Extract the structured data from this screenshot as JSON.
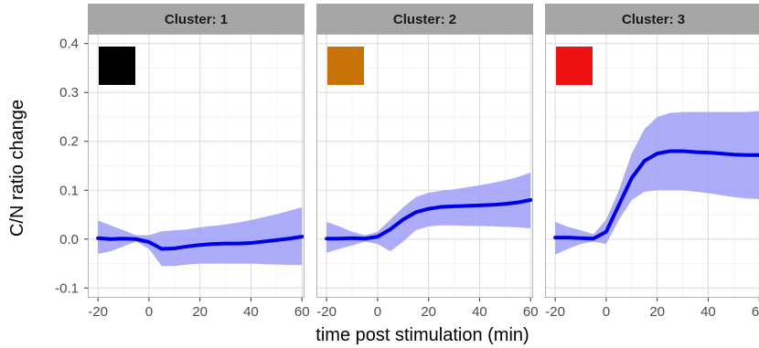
{
  "chart_data": {
    "type": "line",
    "xlabel": "time post stimulation (min)",
    "ylabel": "C/N ratio change",
    "xlim": [
      -24,
      61
    ],
    "ylim": [
      -0.12,
      0.42
    ],
    "x_ticks": [
      -20,
      0,
      20,
      40,
      60
    ],
    "x_tick_labels": [
      "-20",
      "0",
      "20",
      "40",
      "60"
    ],
    "y_ticks": [
      -0.1,
      0.0,
      0.1,
      0.2,
      0.3,
      0.4
    ],
    "y_tick_labels": [
      "-0.1",
      "0.0",
      "0.1",
      "0.2",
      "0.3",
      "0.4"
    ],
    "grid": true,
    "line_color": "#0000e6",
    "ribbon_color": "#9e9ef8",
    "panel_border_color": "#b3b3b3",
    "strip_fill": "#a6a6a6",
    "panels": [
      {
        "strip_label": "Cluster: 1",
        "swatch_color": "#000000",
        "x": [
          -20,
          -15,
          -10,
          -5,
          0,
          5,
          10,
          15,
          20,
          25,
          30,
          35,
          40,
          45,
          50,
          55,
          60
        ],
        "y": [
          0.002,
          0.0,
          0.001,
          0.0,
          -0.006,
          -0.02,
          -0.019,
          -0.015,
          -0.012,
          -0.01,
          -0.009,
          -0.009,
          -0.008,
          -0.005,
          -0.002,
          0.001,
          0.005
        ],
        "lower": [
          -0.03,
          -0.025,
          -0.015,
          -0.005,
          -0.02,
          -0.055,
          -0.055,
          -0.052,
          -0.05,
          -0.05,
          -0.05,
          -0.05,
          -0.05,
          -0.051,
          -0.052,
          -0.053,
          -0.053
        ],
        "upper": [
          0.038,
          0.028,
          0.018,
          0.008,
          0.008,
          0.016,
          0.018,
          0.02,
          0.024,
          0.027,
          0.03,
          0.034,
          0.039,
          0.045,
          0.051,
          0.058,
          0.065
        ]
      },
      {
        "strip_label": "Cluster: 2",
        "swatch_color": "#c77307",
        "x": [
          -20,
          -15,
          -10,
          -5,
          0,
          5,
          10,
          15,
          20,
          25,
          30,
          35,
          40,
          45,
          50,
          55,
          60
        ],
        "y": [
          0.001,
          0.001,
          0.002,
          0.001,
          0.005,
          0.02,
          0.04,
          0.055,
          0.062,
          0.066,
          0.067,
          0.068,
          0.069,
          0.07,
          0.072,
          0.075,
          0.08
        ],
        "lower": [
          -0.028,
          -0.02,
          -0.013,
          -0.005,
          -0.01,
          -0.025,
          -0.005,
          0.018,
          0.026,
          0.028,
          0.028,
          0.027,
          0.027,
          0.026,
          0.025,
          0.024,
          0.022
        ],
        "upper": [
          0.035,
          0.026,
          0.015,
          0.008,
          0.015,
          0.04,
          0.065,
          0.086,
          0.095,
          0.099,
          0.102,
          0.106,
          0.11,
          0.115,
          0.12,
          0.127,
          0.136
        ]
      },
      {
        "strip_label": "Cluster: 3",
        "swatch_color": "#ee1111",
        "x": [
          -20,
          -15,
          -10,
          -5,
          0,
          5,
          10,
          15,
          20,
          25,
          30,
          35,
          40,
          45,
          50,
          55,
          60
        ],
        "y": [
          0.003,
          0.003,
          0.002,
          0.001,
          0.015,
          0.07,
          0.125,
          0.16,
          0.175,
          0.18,
          0.18,
          0.178,
          0.177,
          0.175,
          0.173,
          0.172,
          0.172
        ],
        "lower": [
          -0.032,
          -0.02,
          -0.01,
          -0.005,
          -0.01,
          0.04,
          0.08,
          0.097,
          0.1,
          0.1,
          0.1,
          0.097,
          0.094,
          0.09,
          0.086,
          0.083,
          0.082
        ],
        "upper": [
          0.035,
          0.025,
          0.018,
          0.01,
          0.04,
          0.1,
          0.175,
          0.225,
          0.25,
          0.258,
          0.26,
          0.26,
          0.26,
          0.26,
          0.26,
          0.26,
          0.262
        ]
      }
    ]
  }
}
